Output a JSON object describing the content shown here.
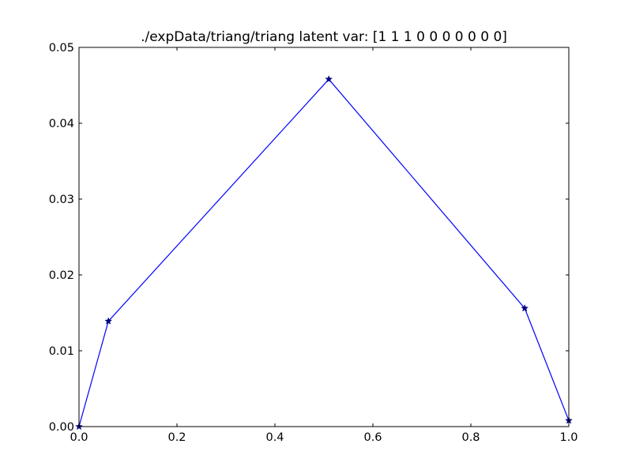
{
  "chart_data": {
    "type": "line",
    "title": "./expData/triang/triang latent var: [1 1 1 0 0 0 0 0 0 0]",
    "xlabel": "",
    "ylabel": "",
    "xlim": [
      0.0,
      1.0
    ],
    "ylim": [
      0.0,
      0.05
    ],
    "x_ticks": [
      "0.0",
      "0.2",
      "0.4",
      "0.6",
      "0.8",
      "1.0"
    ],
    "y_ticks": [
      "0.00",
      "0.01",
      "0.02",
      "0.03",
      "0.04",
      "0.05"
    ],
    "grid": false,
    "series": [
      {
        "color": "#0000ff",
        "marker": "star",
        "x": [
          0.0,
          0.06,
          0.51,
          0.91,
          1.0
        ],
        "y": [
          0.0,
          0.0139,
          0.0458,
          0.0156,
          0.0008
        ]
      }
    ]
  }
}
